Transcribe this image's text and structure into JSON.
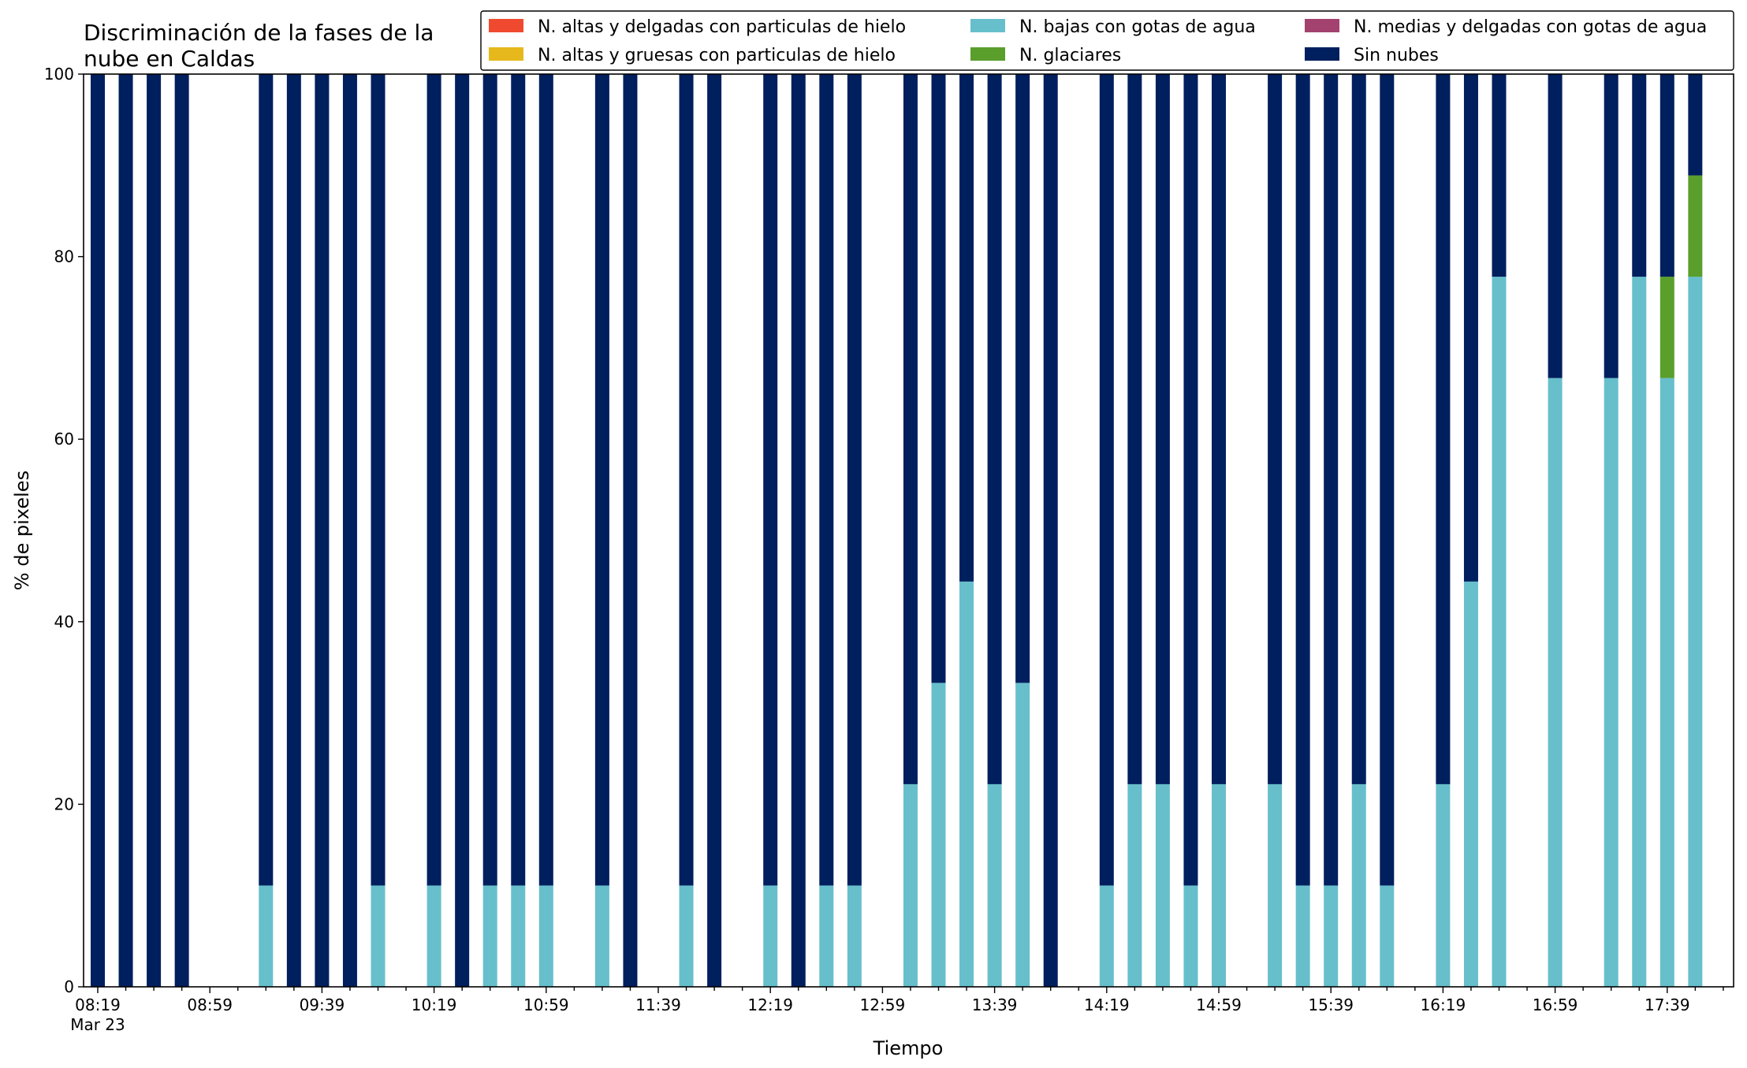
{
  "chart_data": {
    "type": "bar",
    "stacked": true,
    "title_lines": [
      "Discriminación de la fases de la",
      "nube en Caldas"
    ],
    "xlabel": "Tiempo",
    "ylabel": "% de pixeles",
    "ylim": [
      0,
      100
    ],
    "yticks": [
      0,
      20,
      40,
      60,
      80,
      100
    ],
    "xticks": [
      "08:19",
      "08:59",
      "09:39",
      "10:19",
      "10:59",
      "11:39",
      "12:19",
      "12:59",
      "13:39",
      "14:19",
      "14:59",
      "15:39",
      "16:19",
      "16:59",
      "17:39"
    ],
    "xtick_date": "Mar 23",
    "x": [
      "08:19",
      "08:29",
      "08:39",
      "08:49",
      "08:59",
      "09:09",
      "09:19",
      "09:29",
      "09:39",
      "09:49",
      "09:59",
      "10:09",
      "10:19",
      "10:29",
      "10:39",
      "10:49",
      "10:59",
      "11:09",
      "11:19",
      "11:29",
      "11:39",
      "11:49",
      "11:59",
      "12:09",
      "12:19",
      "12:29",
      "12:39",
      "12:49",
      "12:59",
      "13:09",
      "13:19",
      "13:29",
      "13:39",
      "13:49",
      "13:59",
      "14:09",
      "14:19",
      "14:29",
      "14:39",
      "14:49",
      "14:59",
      "15:09",
      "15:19",
      "15:29",
      "15:39",
      "15:49",
      "15:59",
      "16:09",
      "16:19",
      "16:29",
      "16:39",
      "16:49",
      "16:59",
      "17:09",
      "17:19",
      "17:29",
      "17:39",
      "17:49",
      "17:59"
    ],
    "legend_position": "top-right",
    "legend_columns": 3,
    "series": [
      {
        "name": "N. altas y delgadas con particulas de hielo",
        "color": "#ef4a2f",
        "values": [
          0,
          0,
          0,
          0,
          null,
          null,
          0,
          0,
          0,
          0,
          0,
          null,
          0,
          0,
          0,
          0,
          0,
          null,
          0,
          0,
          null,
          0,
          0,
          null,
          0,
          0,
          0,
          0,
          null,
          0,
          0,
          0,
          0,
          0,
          0,
          null,
          0,
          0,
          0,
          0,
          0,
          null,
          0,
          0,
          0,
          0,
          0,
          null,
          0,
          0,
          0,
          null,
          0,
          null,
          0,
          0,
          0,
          0,
          null
        ]
      },
      {
        "name": "N. altas y gruesas con particulas de hielo",
        "color": "#e6b81c",
        "values": [
          0,
          0,
          0,
          0,
          null,
          null,
          0,
          0,
          0,
          0,
          0,
          null,
          0,
          0,
          0,
          0,
          0,
          null,
          0,
          0,
          null,
          0,
          0,
          null,
          0,
          0,
          0,
          0,
          null,
          0,
          0,
          0,
          0,
          0,
          0,
          null,
          0,
          0,
          0,
          0,
          0,
          null,
          0,
          0,
          0,
          0,
          0,
          null,
          0,
          0,
          0,
          null,
          0,
          null,
          0,
          0,
          0,
          0,
          null
        ]
      },
      {
        "name": "N. bajas con gotas de agua",
        "color": "#67bfcc",
        "values": [
          0,
          0,
          0,
          0,
          null,
          null,
          11.1,
          0,
          0,
          0,
          11.1,
          null,
          11.1,
          0,
          11.1,
          11.1,
          11.1,
          null,
          11.1,
          0,
          null,
          11.1,
          0,
          null,
          11.1,
          0,
          11.1,
          11.1,
          null,
          22.2,
          33.3,
          44.4,
          22.2,
          33.3,
          0,
          null,
          11.1,
          22.2,
          22.2,
          11.1,
          22.2,
          null,
          22.2,
          11.1,
          11.1,
          22.2,
          11.1,
          null,
          22.2,
          44.4,
          77.8,
          null,
          66.7,
          null,
          66.7,
          77.8,
          66.7,
          77.8,
          null
        ]
      },
      {
        "name": "N. glaciares",
        "color": "#5a9e2c",
        "values": [
          0,
          0,
          0,
          0,
          null,
          null,
          0,
          0,
          0,
          0,
          0,
          null,
          0,
          0,
          0,
          0,
          0,
          null,
          0,
          0,
          null,
          0,
          0,
          null,
          0,
          0,
          0,
          0,
          null,
          0,
          0,
          0,
          0,
          0,
          0,
          null,
          0,
          0,
          0,
          0,
          0,
          null,
          0,
          0,
          0,
          0,
          0,
          null,
          0,
          0,
          0,
          null,
          0,
          null,
          0,
          0,
          11.1,
          11.1,
          null
        ]
      },
      {
        "name": "N. medias y delgadas con gotas de agua",
        "color": "#a3426f",
        "values": [
          0,
          0,
          0,
          0,
          null,
          null,
          0,
          0,
          0,
          0,
          0,
          null,
          0,
          0,
          0,
          0,
          0,
          null,
          0,
          0,
          null,
          0,
          0,
          null,
          0,
          0,
          0,
          0,
          null,
          0,
          0,
          0,
          0,
          0,
          0,
          null,
          0,
          0,
          0,
          0,
          0,
          null,
          0,
          0,
          0,
          0,
          0,
          null,
          0,
          0,
          0,
          null,
          0,
          null,
          0,
          0,
          0,
          0,
          null
        ]
      },
      {
        "name": "Sin nubes",
        "color": "#001f5e",
        "values": [
          100,
          100,
          100,
          100,
          null,
          null,
          88.9,
          100,
          100,
          100,
          88.9,
          null,
          88.9,
          100,
          88.9,
          88.9,
          88.9,
          null,
          88.9,
          100,
          null,
          88.9,
          100,
          null,
          88.9,
          100,
          88.9,
          88.9,
          null,
          77.8,
          66.7,
          55.6,
          77.8,
          66.7,
          100,
          null,
          88.9,
          77.8,
          77.8,
          88.9,
          77.8,
          null,
          77.8,
          88.9,
          88.9,
          77.8,
          88.9,
          null,
          77.8,
          55.6,
          22.2,
          null,
          33.3,
          null,
          33.3,
          22.2,
          22.2,
          11.1,
          null
        ]
      }
    ]
  }
}
